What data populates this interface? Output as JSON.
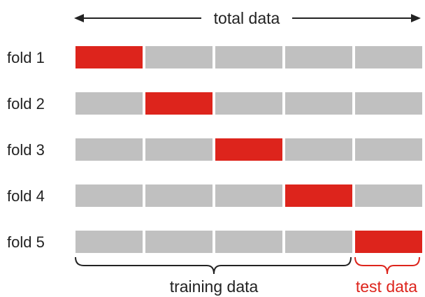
{
  "header": {
    "label": "total data"
  },
  "folds": [
    {
      "label": "fold 1",
      "test_index": 0
    },
    {
      "label": "fold 2",
      "test_index": 1
    },
    {
      "label": "fold 3",
      "test_index": 2
    },
    {
      "label": "fold 4",
      "test_index": 3
    },
    {
      "label": "fold 5",
      "test_index": 4
    }
  ],
  "segments_per_fold": 5,
  "legend": {
    "training_label": "training data",
    "test_label": "test data"
  },
  "colors": {
    "training": "#c0c0c0",
    "test": "#dd241c",
    "text": "#222222",
    "bracket_training": "#222222",
    "bracket_test": "#dd241c"
  }
}
